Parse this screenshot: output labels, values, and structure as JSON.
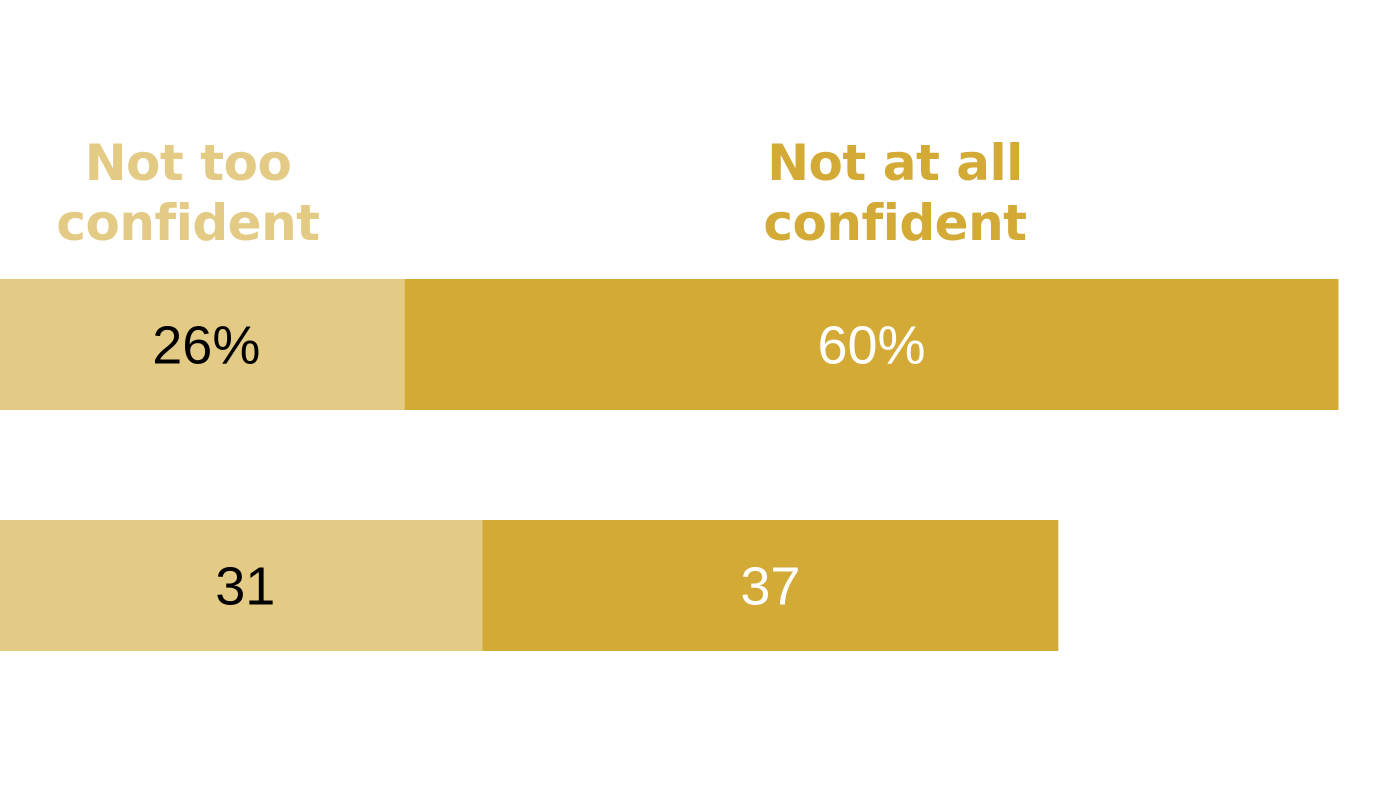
{
  "chart_data": {
    "type": "bar",
    "orientation": "horizontal",
    "stacked": true,
    "title": "",
    "xlabel": "",
    "ylabel": "",
    "xlim": [
      0,
      88
    ],
    "grid": false,
    "legend_placement": "top",
    "categories": [
      "",
      ""
    ],
    "series": [
      {
        "name": "Not too confident",
        "color": "#e3cb86",
        "label_color": "#000000",
        "values": [
          26,
          31
        ],
        "data_labels": [
          "26%",
          "31"
        ]
      },
      {
        "name": "Not at all confident",
        "color": "#d2aa35",
        "label_color": "#ffffff",
        "values": [
          60,
          37
        ],
        "data_labels": [
          "60%",
          "37"
        ]
      }
    ]
  }
}
